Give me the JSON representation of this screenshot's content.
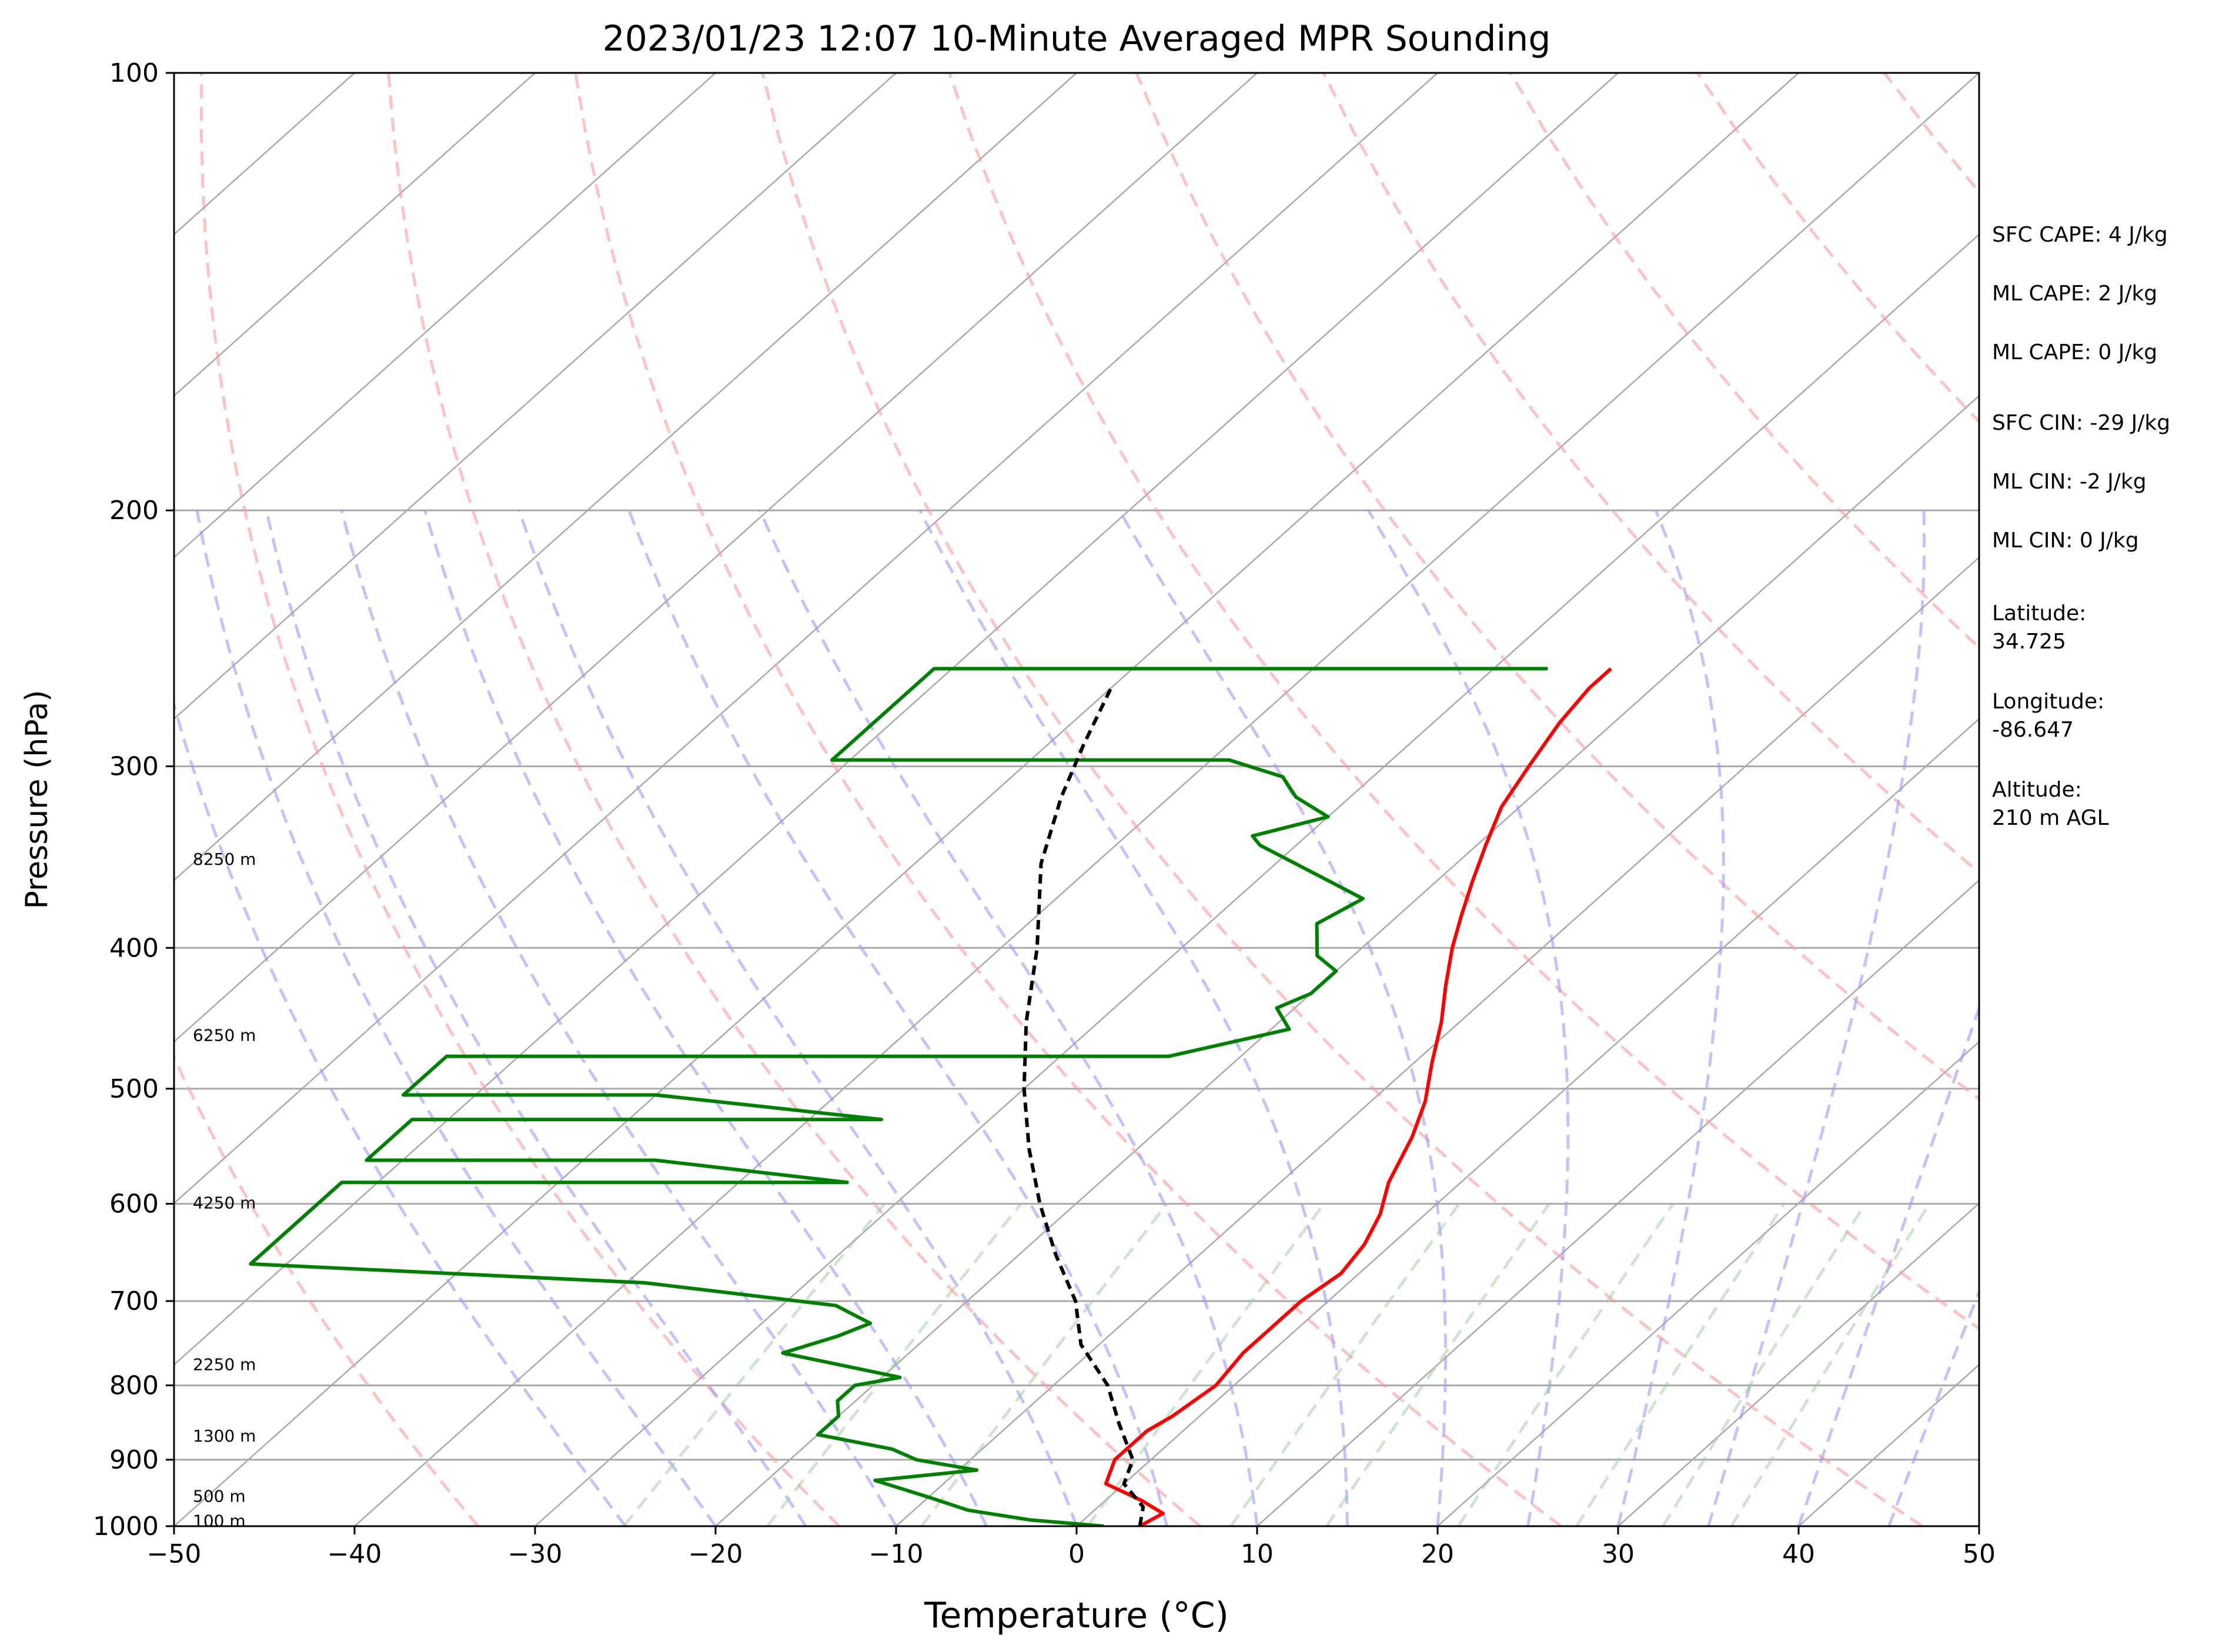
{
  "chart_data": {
    "type": "line",
    "title": "2023/01/23 12:07 10-Minute Averaged MPR Sounding",
    "xlabel": "Temperature (°C)",
    "ylabel": "Pressure (hPa)",
    "xlim": [
      -50,
      50
    ],
    "ylim": [
      1000,
      100
    ],
    "y_scale": "log",
    "skew_t": true,
    "grid": true,
    "x_ticks": [
      -50,
      -40,
      -30,
      -20,
      -10,
      0,
      10,
      20,
      30,
      40,
      50
    ],
    "x_tick_labels": [
      "−50",
      "−40",
      "−30",
      "−20",
      "−10",
      "0",
      "10",
      "20",
      "30",
      "40",
      "50"
    ],
    "y_ticks": [
      1000,
      900,
      800,
      700,
      600,
      500,
      400,
      300,
      200,
      100
    ],
    "y_tick_labels": [
      "1000",
      "900",
      "800",
      "700",
      "600",
      "500",
      "400",
      "300",
      "200",
      "100"
    ],
    "series": [
      {
        "role": "temperature",
        "color": "#ff0000",
        "points": [
          [
            3.5,
            1000
          ],
          [
            4,
            980
          ],
          [
            2,
            960
          ],
          [
            -1,
            935
          ],
          [
            -2,
            900
          ],
          [
            -2,
            860
          ],
          [
            -1.5,
            840
          ],
          [
            -1,
            800
          ],
          [
            -1.5,
            760
          ],
          [
            -1.5,
            700
          ],
          [
            -1,
            670
          ],
          [
            -1.5,
            640
          ],
          [
            -2.5,
            610
          ],
          [
            -4,
            580
          ],
          [
            -5.5,
            540
          ],
          [
            -7,
            510
          ],
          [
            -9,
            480
          ],
          [
            -11,
            450
          ],
          [
            -13,
            425
          ],
          [
            -15,
            400
          ],
          [
            -16.5,
            380
          ],
          [
            -18,
            360
          ],
          [
            -19.5,
            340
          ],
          [
            -21,
            320
          ],
          [
            -22,
            300
          ],
          [
            -23,
            280
          ],
          [
            -23.5,
            265
          ],
          [
            -23.5,
            257
          ]
        ]
      },
      {
        "role": "dewpoint",
        "color": "#008000",
        "points": [
          [
            1.5,
            1000
          ],
          [
            -3,
            990
          ],
          [
            -7,
            975
          ],
          [
            -10,
            955
          ],
          [
            -14,
            930
          ],
          [
            -9,
            915
          ],
          [
            -13,
            900
          ],
          [
            -15,
            885
          ],
          [
            -20,
            865
          ],
          [
            -20,
            840
          ],
          [
            -21,
            820
          ],
          [
            -21,
            800
          ],
          [
            -19,
            790
          ],
          [
            -27,
            760
          ],
          [
            -25,
            740
          ],
          [
            -24,
            725
          ],
          [
            -27,
            705
          ],
          [
            -39,
            680
          ],
          [
            -62,
            660
          ],
          [
            -62,
            580
          ],
          [
            -34,
            580
          ],
          [
            -46,
            560
          ],
          [
            -62,
            560
          ],
          [
            -62,
            525
          ],
          [
            -36,
            525
          ],
          [
            -50,
            505
          ],
          [
            -64,
            505
          ],
          [
            -64,
            475
          ],
          [
            -24,
            475
          ],
          [
            -19,
            455
          ],
          [
            -21,
            440
          ],
          [
            -20,
            430
          ],
          [
            -20,
            415
          ],
          [
            -22,
            405
          ],
          [
            -24,
            385
          ],
          [
            -23,
            370
          ],
          [
            -32,
            340
          ],
          [
            -33,
            335
          ],
          [
            -30,
            325
          ],
          [
            -33,
            315
          ],
          [
            -35,
            305
          ],
          [
            -39,
            297
          ],
          [
            -61,
            297
          ],
          [
            -61,
            257
          ],
          [
            -27,
            257
          ]
        ]
      },
      {
        "role": "parcel",
        "color": "#000000",
        "dashed": true,
        "points": [
          [
            3.5,
            1000
          ],
          [
            2.5,
            970
          ],
          [
            0,
            935
          ],
          [
            -1,
            900
          ],
          [
            -4,
            850
          ],
          [
            -7,
            800
          ],
          [
            -11,
            750
          ],
          [
            -14,
            700
          ],
          [
            -18,
            650
          ],
          [
            -22,
            600
          ],
          [
            -26,
            550
          ],
          [
            -30,
            500
          ],
          [
            -34,
            450
          ],
          [
            -38,
            400
          ],
          [
            -43,
            350
          ],
          [
            -46,
            315
          ],
          [
            -48,
            290
          ],
          [
            -50,
            265
          ]
        ]
      }
    ],
    "height_labels": [
      {
        "text": "100 m",
        "p": 993
      },
      {
        "text": "500 m",
        "p": 955
      },
      {
        "text": "1300 m",
        "p": 868
      },
      {
        "text": "2250 m",
        "p": 775
      },
      {
        "text": "4250 m",
        "p": 600
      },
      {
        "text": "6250 m",
        "p": 460
      },
      {
        "text": "8250 m",
        "p": 348
      }
    ],
    "dry_adiabats_theta_K": [
      240,
      260,
      280,
      300,
      320,
      340,
      360,
      380,
      400,
      420,
      440,
      460,
      480,
      500,
      520,
      540,
      560,
      580
    ],
    "moist_adiabats_start_C": [
      -25,
      -20,
      -15,
      -10,
      -5,
      0,
      5,
      10,
      15,
      20,
      25,
      30,
      35,
      40,
      45
    ],
    "mixing_ratio_lines_gkg": [
      0.5,
      1,
      2,
      4,
      7,
      10,
      16,
      24,
      32,
      40
    ],
    "isotherm_step_C": 10,
    "background_line_colors": {
      "isotherms": "#a9a9a9",
      "dry_adiabats": "#ff9999",
      "moist_adiabats": "#9999ff",
      "mixing_ratio": "#99cc99"
    }
  },
  "info": {
    "sfc_cape": "SFC CAPE: 4 J/kg",
    "ml_cape_1": "ML CAPE: 2 J/kg",
    "ml_cape_2": "ML CAPE: 0 J/kg",
    "sfc_cin": "SFC CIN: -29 J/kg",
    "ml_cin_1": "ML CIN: -2 J/kg",
    "ml_cin_2": "ML CIN: 0 J/kg",
    "latitude": "Latitude:\n34.725",
    "longitude": "Longitude:\n-86.647",
    "altitude": "Altitude:\n210 m AGL"
  }
}
